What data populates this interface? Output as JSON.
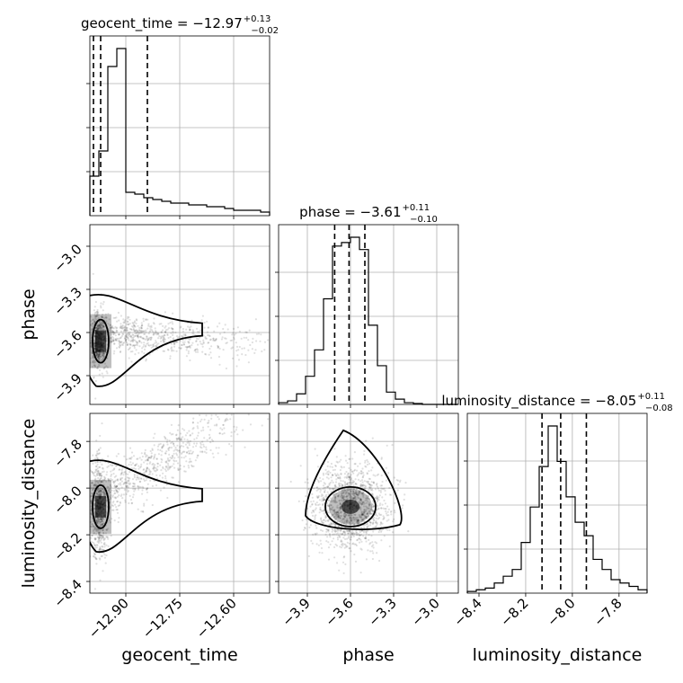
{
  "chart_data": {
    "type": "corner",
    "parameters": [
      {
        "name": "geocent_time",
        "label": "geocent_time",
        "title_main": "geocent_time = −12.97",
        "title_plus": "+0.13",
        "title_minus": "−0.02",
        "range": [
          -13.0,
          -12.5
        ],
        "ticks": [
          -12.9,
          -12.75,
          -12.6
        ],
        "tick_labels": [
          "−12.90",
          "−12.75",
          "−12.60"
        ],
        "quantiles": [
          -12.99,
          -12.97,
          -12.84
        ]
      },
      {
        "name": "phase",
        "label": "phase",
        "title_main": "phase = −3.61",
        "title_plus": "+0.11",
        "title_minus": "−0.10",
        "range": [
          -4.1,
          -2.85
        ],
        "ticks": [
          -3.9,
          -3.6,
          -3.3,
          -3.0
        ],
        "tick_labels": [
          "−3.9",
          "−3.6",
          "−3.3",
          "−3.0"
        ],
        "quantiles": [
          -3.71,
          -3.61,
          -3.5
        ]
      },
      {
        "name": "luminosity_distance",
        "label": "luminosity_distance",
        "title_main": "luminosity_distance = −8.05",
        "title_plus": "+0.11",
        "title_minus": "−0.08",
        "range": [
          -8.45,
          -7.68
        ],
        "ticks": [
          -8.4,
          -8.2,
          -8.0,
          -7.8
        ],
        "tick_labels": [
          "−8.4",
          "−8.2",
          "−8.0",
          "−7.8"
        ],
        "quantiles": [
          -8.13,
          -8.05,
          -7.94
        ]
      }
    ],
    "histograms": [
      {
        "edges": [
          -13.0,
          -12.975,
          -12.95,
          -12.925,
          -12.9,
          -12.875,
          -12.85,
          -12.825,
          -12.8,
          -12.775,
          -12.75,
          -12.725,
          -12.7,
          -12.675,
          -12.65,
          -12.625,
          -12.6,
          -12.575,
          -12.55,
          -12.525,
          -12.5
        ],
        "counts": [
          0.22,
          0.36,
          0.83,
          0.93,
          0.13,
          0.12,
          0.1,
          0.09,
          0.08,
          0.07,
          0.07,
          0.06,
          0.06,
          0.05,
          0.05,
          0.04,
          0.03,
          0.03,
          0.03,
          0.02
        ]
      },
      {
        "edges": [
          -4.1,
          -4.0375,
          -3.975,
          -3.9125,
          -3.85,
          -3.7875,
          -3.725,
          -3.6625,
          -3.6,
          -3.5375,
          -3.475,
          -3.4125,
          -3.35,
          -3.2875,
          -3.225,
          -3.1625,
          -3.1,
          -3.0375,
          -2.975,
          -2.9125,
          -2.85
        ],
        "counts": [
          0.01,
          0.02,
          0.06,
          0.16,
          0.31,
          0.6,
          0.9,
          0.92,
          0.95,
          0.88,
          0.45,
          0.22,
          0.07,
          0.03,
          0.01,
          0.005,
          0.0,
          0.0,
          0.0,
          0.0
        ]
      },
      {
        "edges": [
          -8.45,
          -8.4115,
          -8.373,
          -8.3345,
          -8.296,
          -8.2575,
          -8.219,
          -8.1805,
          -8.142,
          -8.1035,
          -8.065,
          -8.0265,
          -7.988,
          -7.9495,
          -7.911,
          -7.8725,
          -7.834,
          -7.7955,
          -7.757,
          -7.7185,
          -7.68
        ],
        "counts": [
          0.01,
          0.02,
          0.03,
          0.06,
          0.1,
          0.14,
          0.3,
          0.51,
          0.75,
          0.99,
          0.78,
          0.57,
          0.42,
          0.34,
          0.2,
          0.14,
          0.08,
          0.06,
          0.04,
          0.02
        ]
      }
    ],
    "axis_labels": {
      "x": [
        "geocent_time",
        "phase",
        "luminosity_distance"
      ],
      "y": [
        "phase",
        "luminosity_distance"
      ]
    },
    "grid": true,
    "levels": 2
  }
}
